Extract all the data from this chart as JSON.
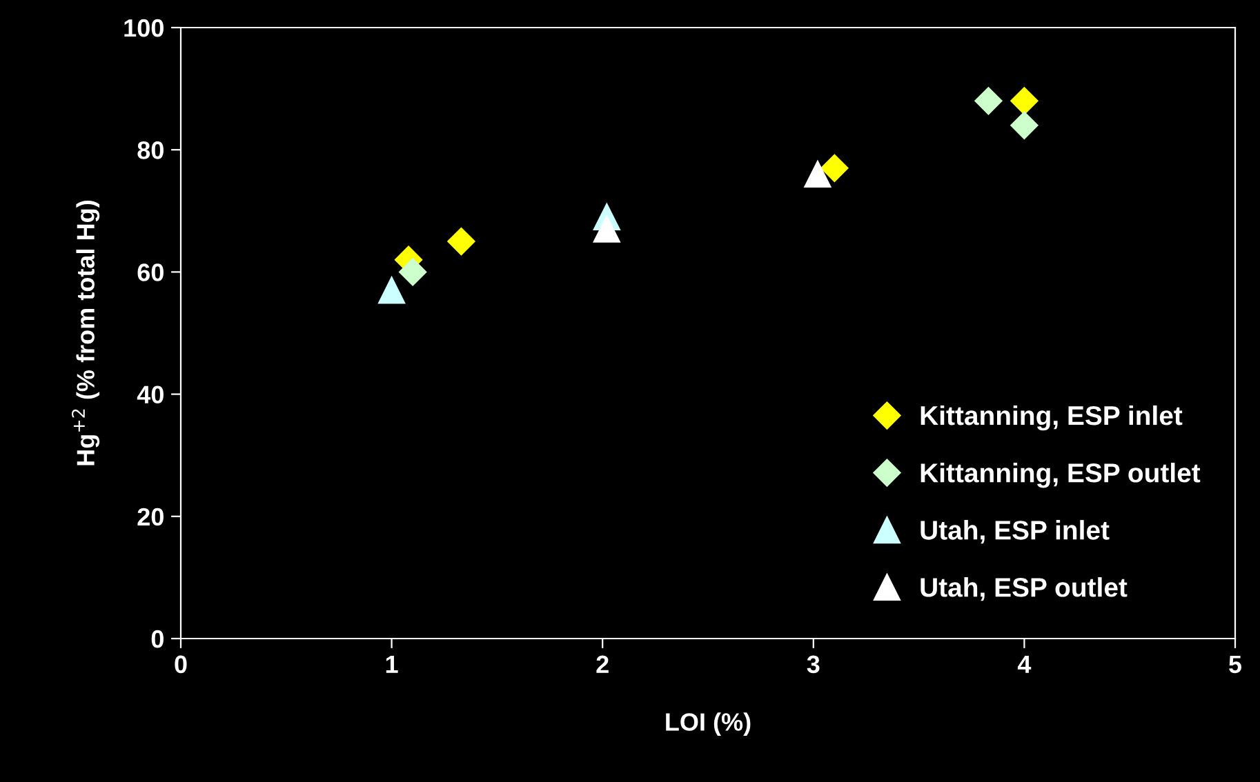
{
  "chart_data": {
    "type": "scatter",
    "xlabel": "LOI (%)",
    "ylabel": "Hg$^{+2}$ (% from total Hg)",
    "xlim": [
      0,
      5
    ],
    "ylim": [
      0,
      100
    ],
    "xticks": [
      0,
      1,
      2,
      3,
      4,
      5
    ],
    "yticks": [
      0,
      20,
      40,
      60,
      80,
      100
    ],
    "grid": false,
    "legend": "bottom right",
    "series": [
      {
        "name": "Kittanning, ESP inlet",
        "color": "#ffff00",
        "marker": "diamond",
        "x": [
          1.08,
          1.33,
          3.1,
          4.0
        ],
        "values": [
          62,
          65,
          77,
          88
        ]
      },
      {
        "name": "Kittanning, ESP outlet",
        "color": "#ccffcc",
        "marker": "diamond",
        "x": [
          1.1,
          3.83,
          4.0
        ],
        "values": [
          60,
          88,
          84
        ]
      },
      {
        "name": "Utah, ESP inlet",
        "color": "#ccffff",
        "marker": "triangle",
        "x": [
          1.0,
          2.02
        ],
        "values": [
          57,
          69
        ]
      },
      {
        "name": "Utah, ESP outlet",
        "color": "#ffffff",
        "marker": "triangle",
        "x": [
          2.02,
          3.02
        ],
        "values": [
          67,
          76
        ]
      }
    ]
  }
}
